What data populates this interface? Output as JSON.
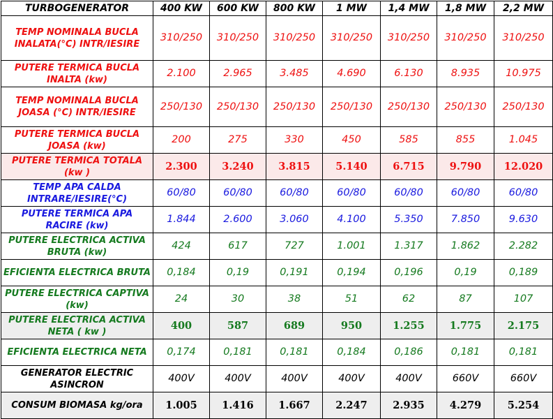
{
  "table": {
    "header": [
      "TURBOGENERATOR",
      "400 KW",
      "600 KW",
      "800 KW",
      "1 MW",
      "1,4 MW",
      "1,8 MW",
      "2,2 MW"
    ],
    "rows": [
      {
        "label": "TEMP NOMINALA BUCLA INALATA(°C) INTR/IESIRE",
        "values": [
          "310/250",
          "310/250",
          "310/250",
          "310/250",
          "310/250",
          "310/250",
          "310/250"
        ],
        "color": "#ee1111",
        "bold": false,
        "background": "white"
      },
      {
        "label": "PUTERE TERMICA BUCLA INALTA (kw)",
        "values": [
          "2.100",
          "2.965",
          "3.485",
          "4.690",
          "6.130",
          "8.935",
          "10.975"
        ],
        "color": "#ee1111",
        "bold": false,
        "background": "white"
      },
      {
        "label": "TEMP NOMINALA BUCLA JOASA (°C) INTR/IESIRE",
        "values": [
          "250/130",
          "250/130",
          "250/130",
          "250/130",
          "250/130",
          "250/130",
          "250/130"
        ],
        "color": "#ee1111",
        "bold": false,
        "background": "white"
      },
      {
        "label": "PUTERE TERMICA BUCLA JOASA (kw)",
        "values": [
          "200",
          "275",
          "330",
          "450",
          "585",
          "855",
          "1.045"
        ],
        "color": "#ee1111",
        "bold": false,
        "background": "white"
      },
      {
        "label": "PUTERE TERMICA TOTALA (kw )",
        "values": [
          "2.300",
          "3.240",
          "3.815",
          "5.140",
          "6.715",
          "9.790",
          "12.020"
        ],
        "color": "#ee1111",
        "bold": true,
        "background": "pink"
      },
      {
        "label": "TEMP APA CALDA INTRARE/IESIRE(°C)",
        "values": [
          "60/80",
          "60/80",
          "60/80",
          "60/80",
          "60/80",
          "60/80",
          "60/80"
        ],
        "color": "#1a1adf",
        "bold": false,
        "background": "white"
      },
      {
        "label": "PUTERE TERMICA APA RACIRE (kw)",
        "values": [
          "1.844",
          "2.600",
          "3.060",
          "4.100",
          "5.350",
          "7.850",
          "9.630"
        ],
        "color": "#1a1adf",
        "bold": false,
        "background": "white"
      },
      {
        "label": "PUTERE ELECTRICA ACTIVA BRUTA (kw)",
        "values": [
          "424",
          "617",
          "727",
          "1.001",
          "1.317",
          "1.862",
          "2.282"
        ],
        "color": "#157a1f",
        "bold": false,
        "background": "white"
      },
      {
        "label": "EFICIENTA ELECTRICA BRUTA",
        "values": [
          "0,184",
          "0,19",
          "0,191",
          "0,194",
          "0,196",
          "0,19",
          "0,189"
        ],
        "color": "#157a1f",
        "bold": false,
        "background": "white"
      },
      {
        "label": "PUTERE ELECTRICA CAPTIVA (kw)",
        "values": [
          "24",
          "30",
          "38",
          "51",
          "62",
          "87",
          "107"
        ],
        "color": "#157a1f",
        "bold": false,
        "background": "white"
      },
      {
        "label": "PUTERE ELECTRICA ACTIVA NETA ( kw )",
        "values": [
          "400",
          "587",
          "689",
          "950",
          "1.255",
          "1.775",
          "2.175"
        ],
        "color": "#157a1f",
        "bold": true,
        "background": "gray"
      },
      {
        "label": "EFICIENTA ELECTRICA NETA",
        "values": [
          "0,174",
          "0,181",
          "0,181",
          "0,184",
          "0,186",
          "0,181",
          "0,181"
        ],
        "color": "#157a1f",
        "bold": false,
        "background": "white"
      },
      {
        "label": "GENERATOR ELECTRIC ASINCRON",
        "values": [
          "400V",
          "400V",
          "400V",
          "400V",
          "400V",
          "660V",
          "660V"
        ],
        "color": "#000000",
        "bold": false,
        "background": "white"
      },
      {
        "label": "CONSUM BIOMASA kg/ora",
        "values": [
          "1.005",
          "1.416",
          "1.667",
          "2.247",
          "2.935",
          "4.279",
          "5.254"
        ],
        "color": "#000000",
        "bold": true,
        "background": "gray"
      }
    ]
  }
}
